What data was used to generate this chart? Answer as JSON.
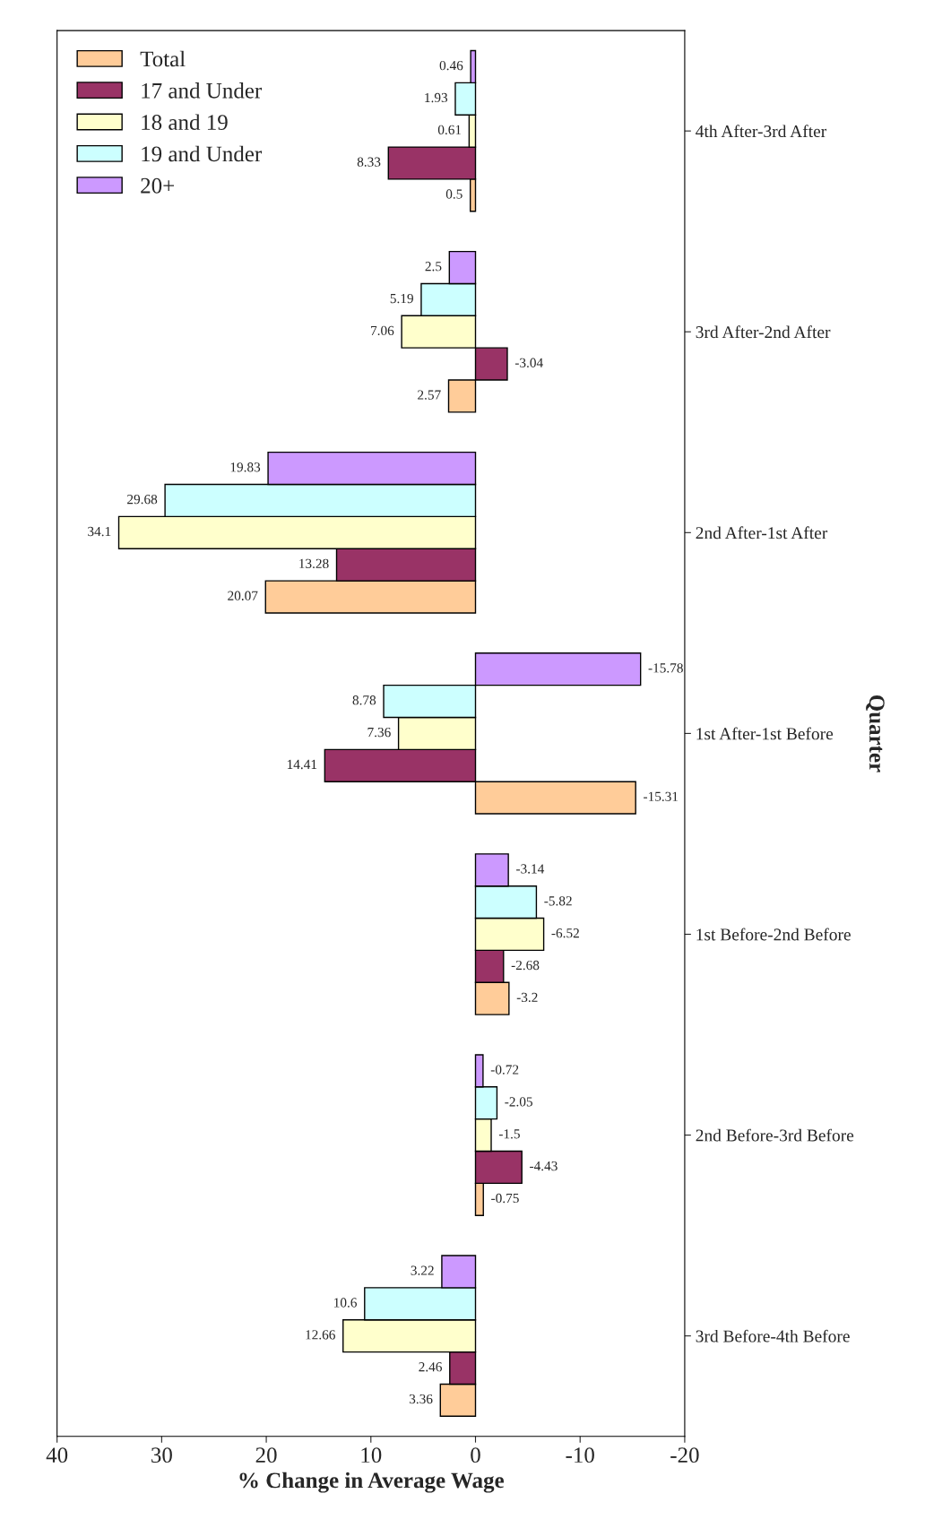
{
  "chart_data": {
    "type": "bar",
    "orientation": "horizontal",
    "xlabel": "% Change in Average Wage",
    "ylabel": "Quarter",
    "categories": [
      "4th After-3rd After",
      "3rd After-2nd After",
      "2nd After-1st After",
      "1st After-1st Before",
      "1st Before-2nd Before",
      "2nd Before-3rd Before",
      "3rd Before-4th Before"
    ],
    "series": [
      {
        "name": "Total",
        "color": "#ffcc99",
        "values": [
          0.5,
          2.57,
          20.07,
          -15.31,
          -3.2,
          -0.75,
          3.36
        ]
      },
      {
        "name": "17 and Under",
        "color": "#993366",
        "values": [
          8.33,
          -3.04,
          13.28,
          14.41,
          -2.68,
          -4.43,
          2.46
        ]
      },
      {
        "name": "18 and 19",
        "color": "#ffffcc",
        "values": [
          0.61,
          7.06,
          34.1,
          7.36,
          -6.52,
          -1.5,
          12.66
        ]
      },
      {
        "name": "19 and Under",
        "color": "#ccffff",
        "values": [
          1.93,
          5.19,
          29.68,
          8.78,
          -5.82,
          -2.05,
          10.6
        ]
      },
      {
        "name": "20+",
        "color": "#cc99ff",
        "values": [
          0.46,
          2.5,
          19.83,
          -15.78,
          -3.14,
          -0.72,
          3.22
        ]
      }
    ],
    "xlim": [
      40,
      -20
    ],
    "xticks": [
      40,
      30,
      20,
      10,
      0,
      -10,
      -20
    ],
    "data_labels": true,
    "grid": false,
    "legend": "upper left"
  }
}
